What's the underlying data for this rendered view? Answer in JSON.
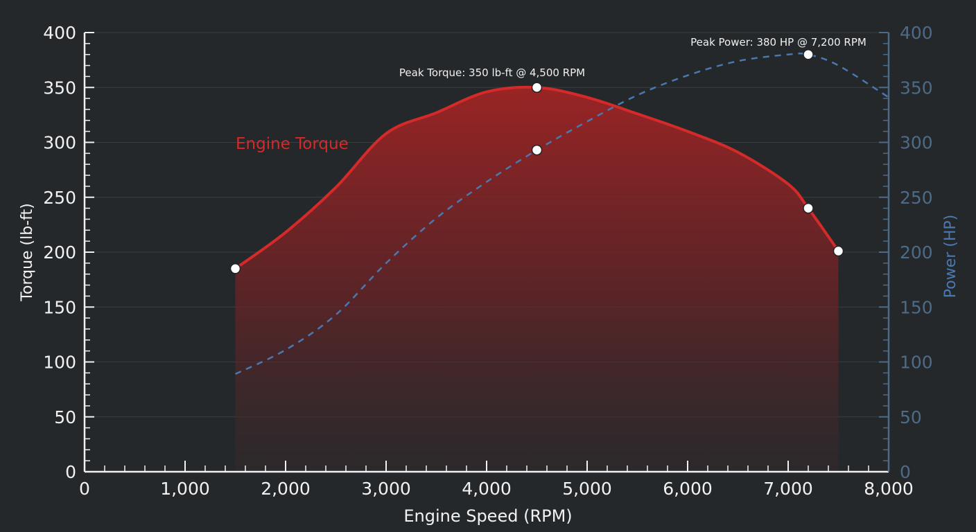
{
  "chart_data": {
    "type": "line",
    "xlabel": "Engine Speed (RPM)",
    "ylabel": "Torque (lb-ft)",
    "y2label": "Power (HP)",
    "xlim": [
      0,
      8000
    ],
    "ylim": [
      0,
      400
    ],
    "y2lim": [
      0,
      400
    ],
    "x_ticks": [
      "0",
      "1,000",
      "2,000",
      "3,000",
      "4,000",
      "5,000",
      "6,000",
      "7,000",
      "8,000"
    ],
    "y_ticks": [
      "0",
      "50",
      "100",
      "150",
      "200",
      "250",
      "300",
      "350",
      "400"
    ],
    "y2_ticks": [
      "0",
      "50",
      "100",
      "150",
      "200",
      "250",
      "300",
      "350",
      "400"
    ],
    "grid": true,
    "series": [
      {
        "name": "Engine Torque",
        "axis": "left",
        "style": "solid-filled",
        "color": "#d42a2a",
        "x": [
          1500,
          2000,
          2500,
          3000,
          3500,
          4000,
          4500,
          5000,
          5500,
          6000,
          6500,
          7000,
          7200,
          7500
        ],
        "y": [
          185,
          218,
          259,
          308,
          327,
          346,
          350,
          341,
          326,
          310,
          291,
          262,
          240,
          201
        ],
        "markers": [
          [
            1500,
            185
          ],
          [
            4500,
            350
          ],
          [
            7200,
            240
          ],
          [
            7500,
            201
          ]
        ]
      },
      {
        "axis": "right",
        "style": "dashed",
        "color": "#4a78b0",
        "x": [
          1500,
          2000,
          2500,
          3000,
          3500,
          4000,
          4500,
          5000,
          5500,
          6000,
          6500,
          7000,
          7200,
          7500,
          8000
        ],
        "y": [
          89,
          111,
          143,
          190,
          231,
          264,
          293,
          319,
          343,
          361,
          374,
          380,
          380,
          370,
          341
        ],
        "markers": [
          [
            4500,
            293
          ],
          [
            7200,
            380
          ]
        ]
      }
    ],
    "annotations": [
      {
        "text": "Peak Torque: 350 lb-ft @ 4,500 RPM",
        "x": 4500,
        "y": 350
      },
      {
        "text": "Peak Power: 380 HP @ 7,200 RPM",
        "x": 7200,
        "y": 380
      }
    ]
  }
}
